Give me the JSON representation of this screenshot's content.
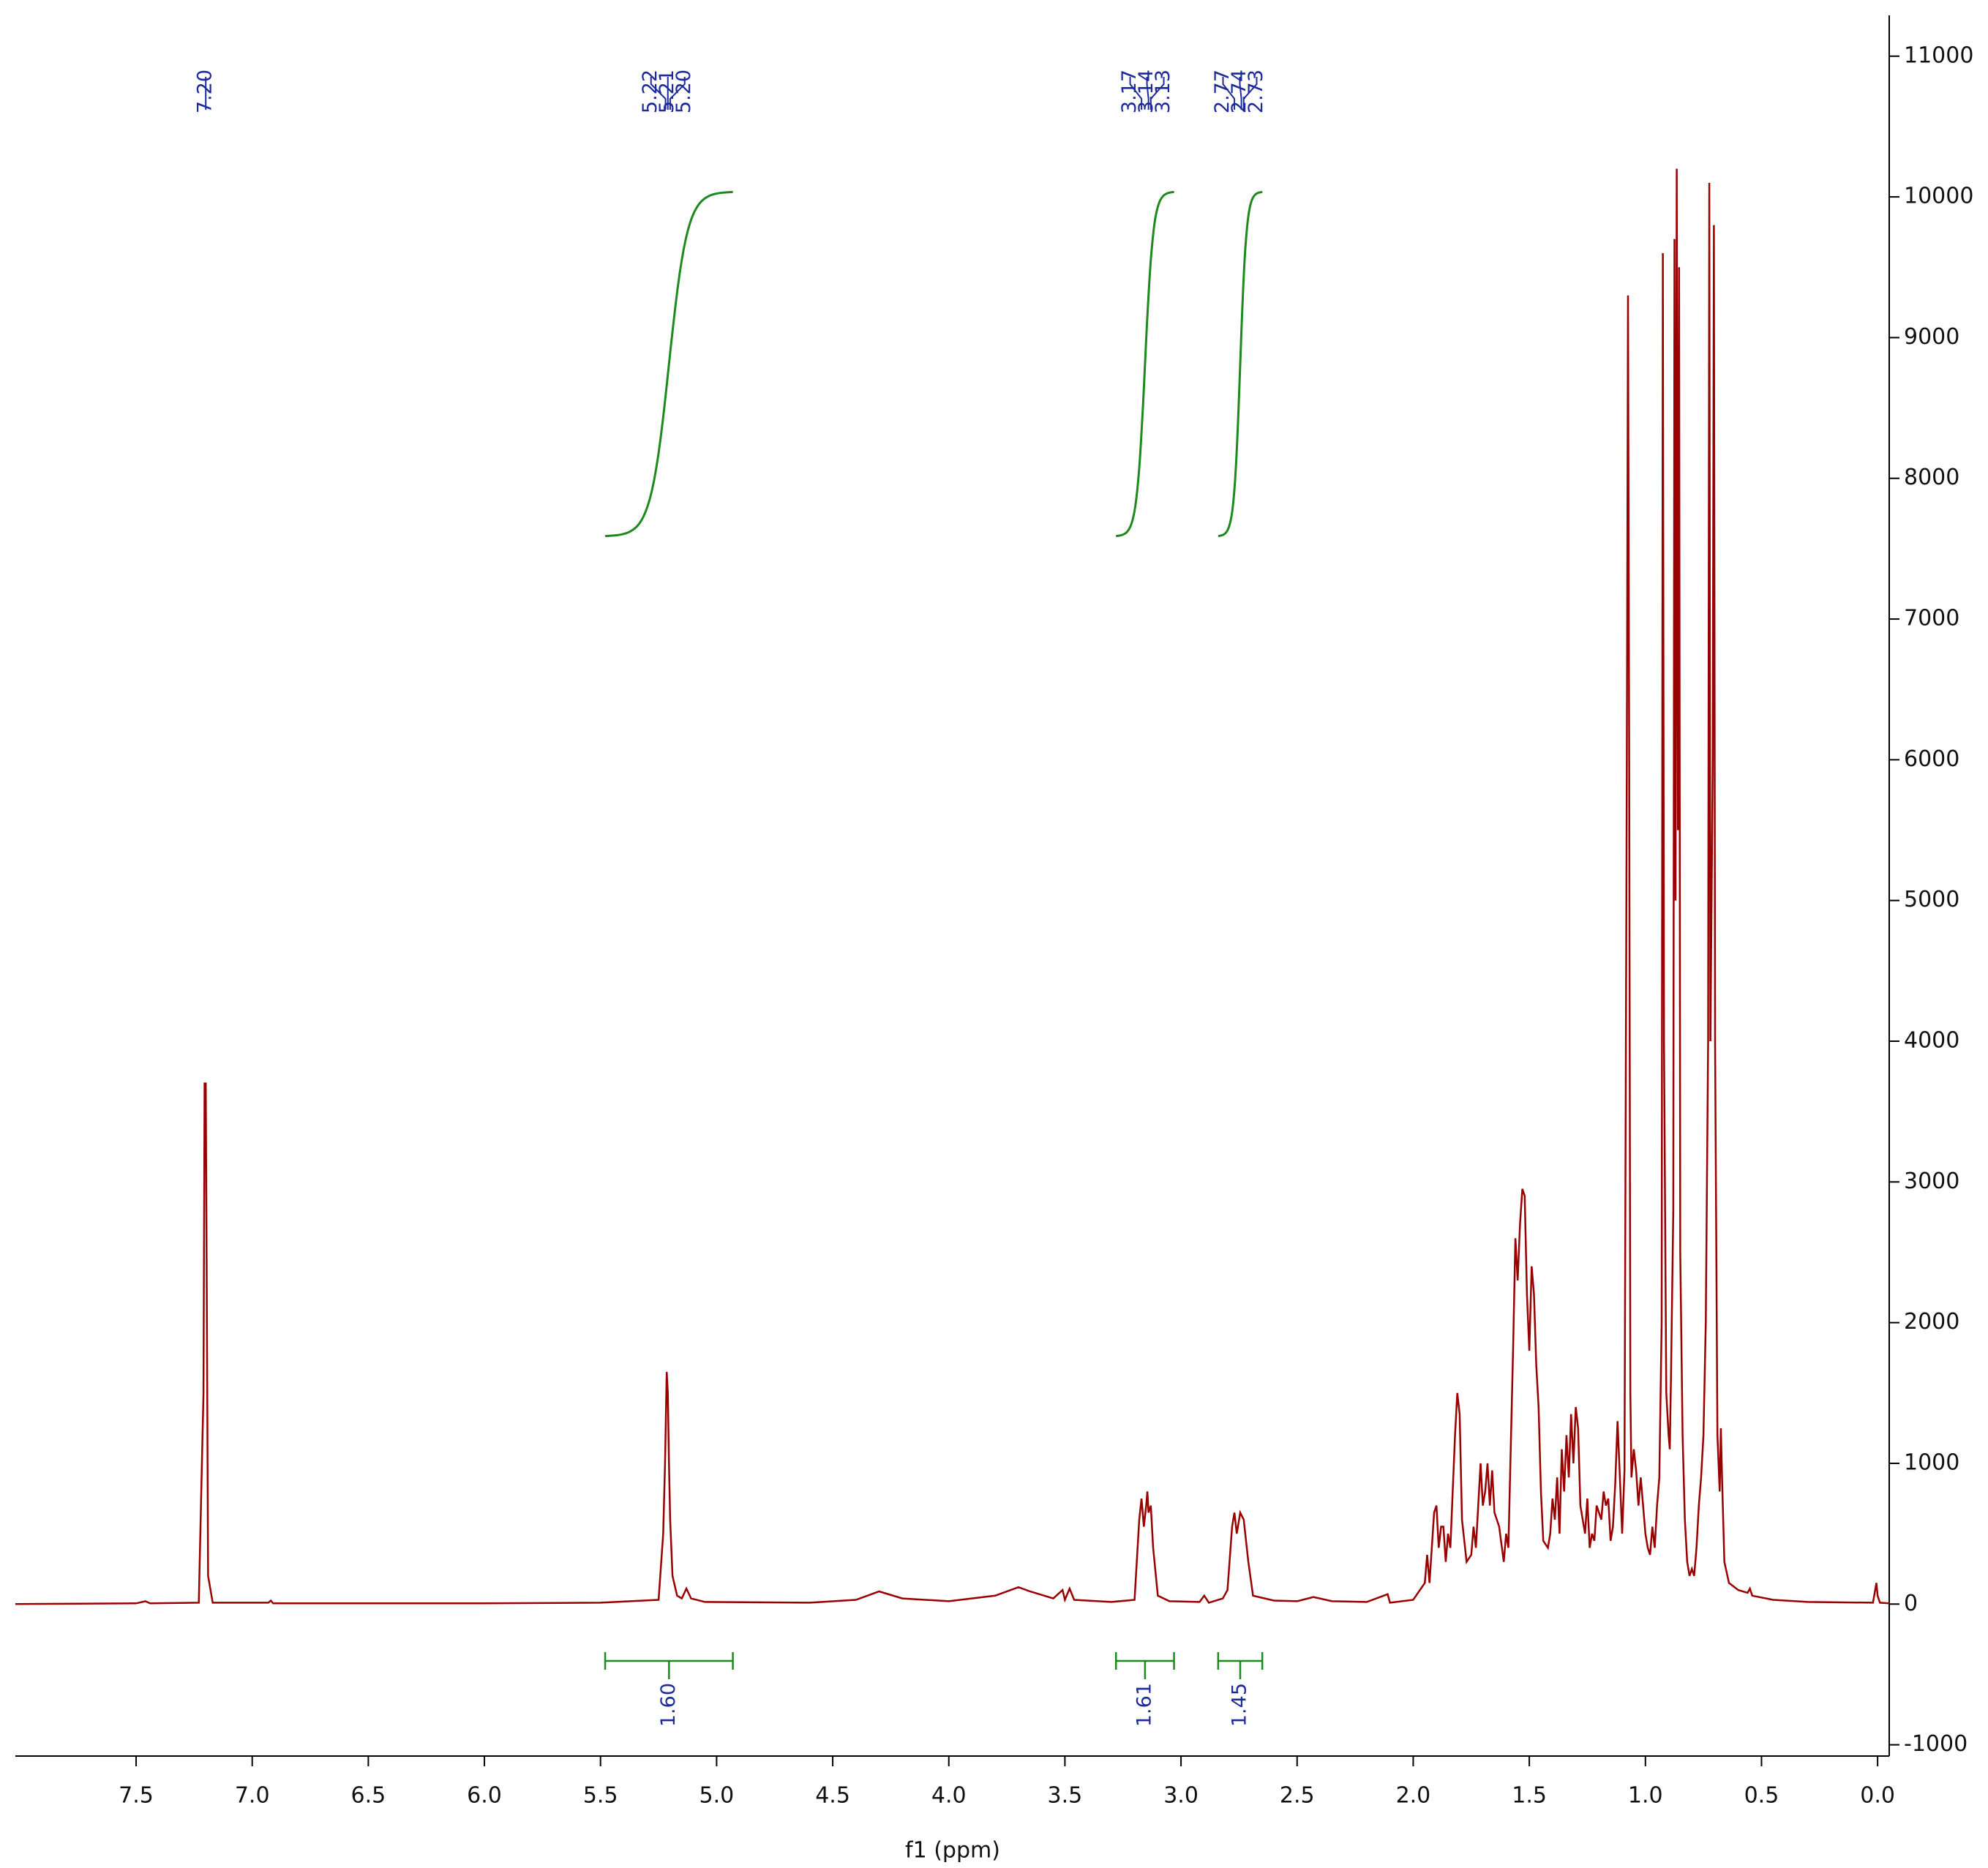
{
  "chart_data": {
    "type": "line",
    "xlabel": "f1 (ppm)",
    "xlim": [
      8.02,
      -0.05
    ],
    "ylim": [
      -1080,
      11290
    ],
    "xticks": [
      7.5,
      {
        "value": 7,
        "label": "7.0"
      },
      6.5,
      {
        "value": 6,
        "label": "6.0"
      },
      5.5,
      {
        "value": 5,
        "label": "5.0"
      },
      4.5,
      {
        "value": 4,
        "label": "4.0"
      },
      3.5,
      {
        "value": 3,
        "label": "3.0"
      },
      2.5,
      {
        "value": 2,
        "label": "2.0"
      },
      1.5,
      {
        "value": 1,
        "label": "1.0"
      },
      0.5,
      {
        "value": 0,
        "label": "0.0"
      }
    ],
    "yticks": [
      -1000,
      0,
      1000,
      2000,
      3000,
      4000,
      5000,
      6000,
      7000,
      8000,
      9000,
      10000,
      11000
    ],
    "x": [
      8.02,
      7.5,
      7.46,
      7.44,
      7.23,
      7.21,
      7.205,
      7.2,
      7.195,
      7.19,
      7.17,
      6.93,
      6.92,
      6.91,
      6.0,
      5.5,
      5.25,
      5.23,
      5.222,
      5.215,
      5.21,
      5.205,
      5.2,
      5.19,
      5.17,
      5.15,
      5.13,
      5.11,
      5.05,
      4.6,
      4.4,
      4.3,
      4.2,
      4.0,
      3.8,
      3.7,
      3.65,
      3.55,
      3.51,
      3.5,
      3.48,
      3.46,
      3.3,
      3.2,
      3.18,
      3.17,
      3.16,
      3.15,
      3.145,
      3.14,
      3.13,
      3.12,
      3.1,
      3.05,
      2.92,
      2.9,
      2.88,
      2.82,
      2.8,
      2.78,
      2.77,
      2.76,
      2.745,
      2.73,
      2.71,
      2.69,
      2.6,
      2.5,
      2.43,
      2.35,
      2.2,
      2.11,
      2.1,
      2.0,
      1.95,
      1.94,
      1.93,
      1.91,
      1.9,
      1.89,
      1.88,
      1.87,
      1.86,
      1.85,
      1.84,
      1.82,
      1.81,
      1.8,
      1.79,
      1.77,
      1.75,
      1.74,
      1.73,
      1.71,
      1.7,
      1.69,
      1.68,
      1.67,
      1.66,
      1.65,
      1.63,
      1.61,
      1.6,
      1.59,
      1.57,
      1.56,
      1.55,
      1.54,
      1.53,
      1.52,
      1.51,
      1.5,
      1.49,
      1.48,
      1.47,
      1.46,
      1.45,
      1.44,
      1.42,
      1.41,
      1.4,
      1.39,
      1.38,
      1.37,
      1.36,
      1.35,
      1.34,
      1.33,
      1.32,
      1.31,
      1.3,
      1.29,
      1.28,
      1.27,
      1.26,
      1.25,
      1.24,
      1.23,
      1.22,
      1.21,
      1.2,
      1.19,
      1.18,
      1.17,
      1.16,
      1.15,
      1.14,
      1.13,
      1.12,
      1.11,
      1.1,
      1.09,
      1.08,
      1.075,
      1.07,
      1.065,
      1.06,
      1.05,
      1.04,
      1.03,
      1.02,
      1.01,
      1.0,
      0.99,
      0.98,
      0.97,
      0.96,
      0.95,
      0.94,
      0.93,
      0.925,
      0.92,
      0.91,
      0.9,
      0.895,
      0.89,
      0.88,
      0.875,
      0.87,
      0.865,
      0.86,
      0.855,
      0.85,
      0.84,
      0.83,
      0.82,
      0.81,
      0.8,
      0.79,
      0.78,
      0.77,
      0.76,
      0.75,
      0.74,
      0.73,
      0.725,
      0.72,
      0.71,
      0.705,
      0.7,
      0.69,
      0.68,
      0.675,
      0.67,
      0.66,
      0.64,
      0.6,
      0.56,
      0.55,
      0.54,
      0.45,
      0.3,
      0.02,
      0.005,
      0.0,
      -0.01,
      -0.05
    ],
    "series": [
      {
        "color": "#990000",
        "values": [
          0,
          5,
          20,
          5,
          10,
          1500,
          3700,
          3700,
          2000,
          200,
          10,
          10,
          25,
          5,
          5,
          10,
          30,
          500,
          1000,
          1650,
          1500,
          1000,
          600,
          200,
          60,
          40,
          110,
          40,
          15,
          10,
          30,
          90,
          40,
          20,
          60,
          120,
          90,
          40,
          100,
          30,
          110,
          30,
          15,
          30,
          600,
          750,
          550,
          700,
          800,
          650,
          700,
          400,
          60,
          20,
          15,
          60,
          10,
          40,
          100,
          550,
          650,
          500,
          650,
          600,
          300,
          60,
          25,
          20,
          50,
          20,
          15,
          70,
          10,
          30,
          150,
          350,
          150,
          650,
          700,
          400,
          550,
          550,
          300,
          500,
          400,
          1200,
          1500,
          1350,
          600,
          300,
          350,
          550,
          400,
          1000,
          700,
          800,
          1000,
          700,
          950,
          650,
          550,
          300,
          500,
          400,
          1800,
          2600,
          2300,
          2700,
          2950,
          2900,
          2200,
          1800,
          2400,
          2200,
          1700,
          1400,
          800,
          450,
          400,
          500,
          750,
          600,
          900,
          500,
          1100,
          800,
          1200,
          900,
          1350,
          1000,
          1400,
          1250,
          700,
          600,
          500,
          750,
          400,
          500,
          450,
          700,
          650,
          600,
          800,
          700,
          750,
          450,
          550,
          850,
          1300,
          900,
          500,
          950,
          6000,
          9300,
          6000,
          1500,
          900,
          1100,
          950,
          700,
          900,
          700,
          500,
          400,
          350,
          550,
          400,
          700,
          900,
          2000,
          9600,
          4000,
          1500,
          1200,
          1100,
          1600,
          2800,
          9700,
          5000,
          10200,
          5500,
          9500,
          2500,
          1200,
          600,
          300,
          200,
          250,
          200,
          400,
          700,
          900,
          1200,
          2000,
          4000,
          10100,
          4000,
          6000,
          9800,
          4000,
          1200,
          800,
          1250,
          900,
          300,
          150,
          100,
          80,
          110,
          60,
          30,
          15,
          10,
          150,
          60,
          10,
          5
        ]
      }
    ],
    "peak_labels": [
      {
        "value": 7.2,
        "label": "7.20"
      },
      {
        "value": 5.22,
        "label": "5.22"
      },
      {
        "value": 5.21,
        "label": "5.21"
      },
      {
        "value": 5.2,
        "label": "5.20"
      },
      {
        "value": 3.17,
        "label": "3.17"
      },
      {
        "value": 3.14,
        "label": "3.14"
      },
      {
        "value": 3.13,
        "label": "3.13"
      },
      {
        "value": 2.77,
        "label": "2.77"
      },
      {
        "value": 2.74,
        "label": "2.74"
      },
      {
        "value": 2.73,
        "label": "2.73"
      }
    ],
    "integrals": [
      {
        "value": 1.6,
        "label": "1.60",
        "range": [
          5.48,
          4.93
        ]
      },
      {
        "value": 1.61,
        "label": "1.61",
        "range": [
          3.28,
          3.03
        ]
      },
      {
        "value": 1.45,
        "label": "1.45",
        "range": [
          2.84,
          2.65
        ]
      }
    ]
  }
}
